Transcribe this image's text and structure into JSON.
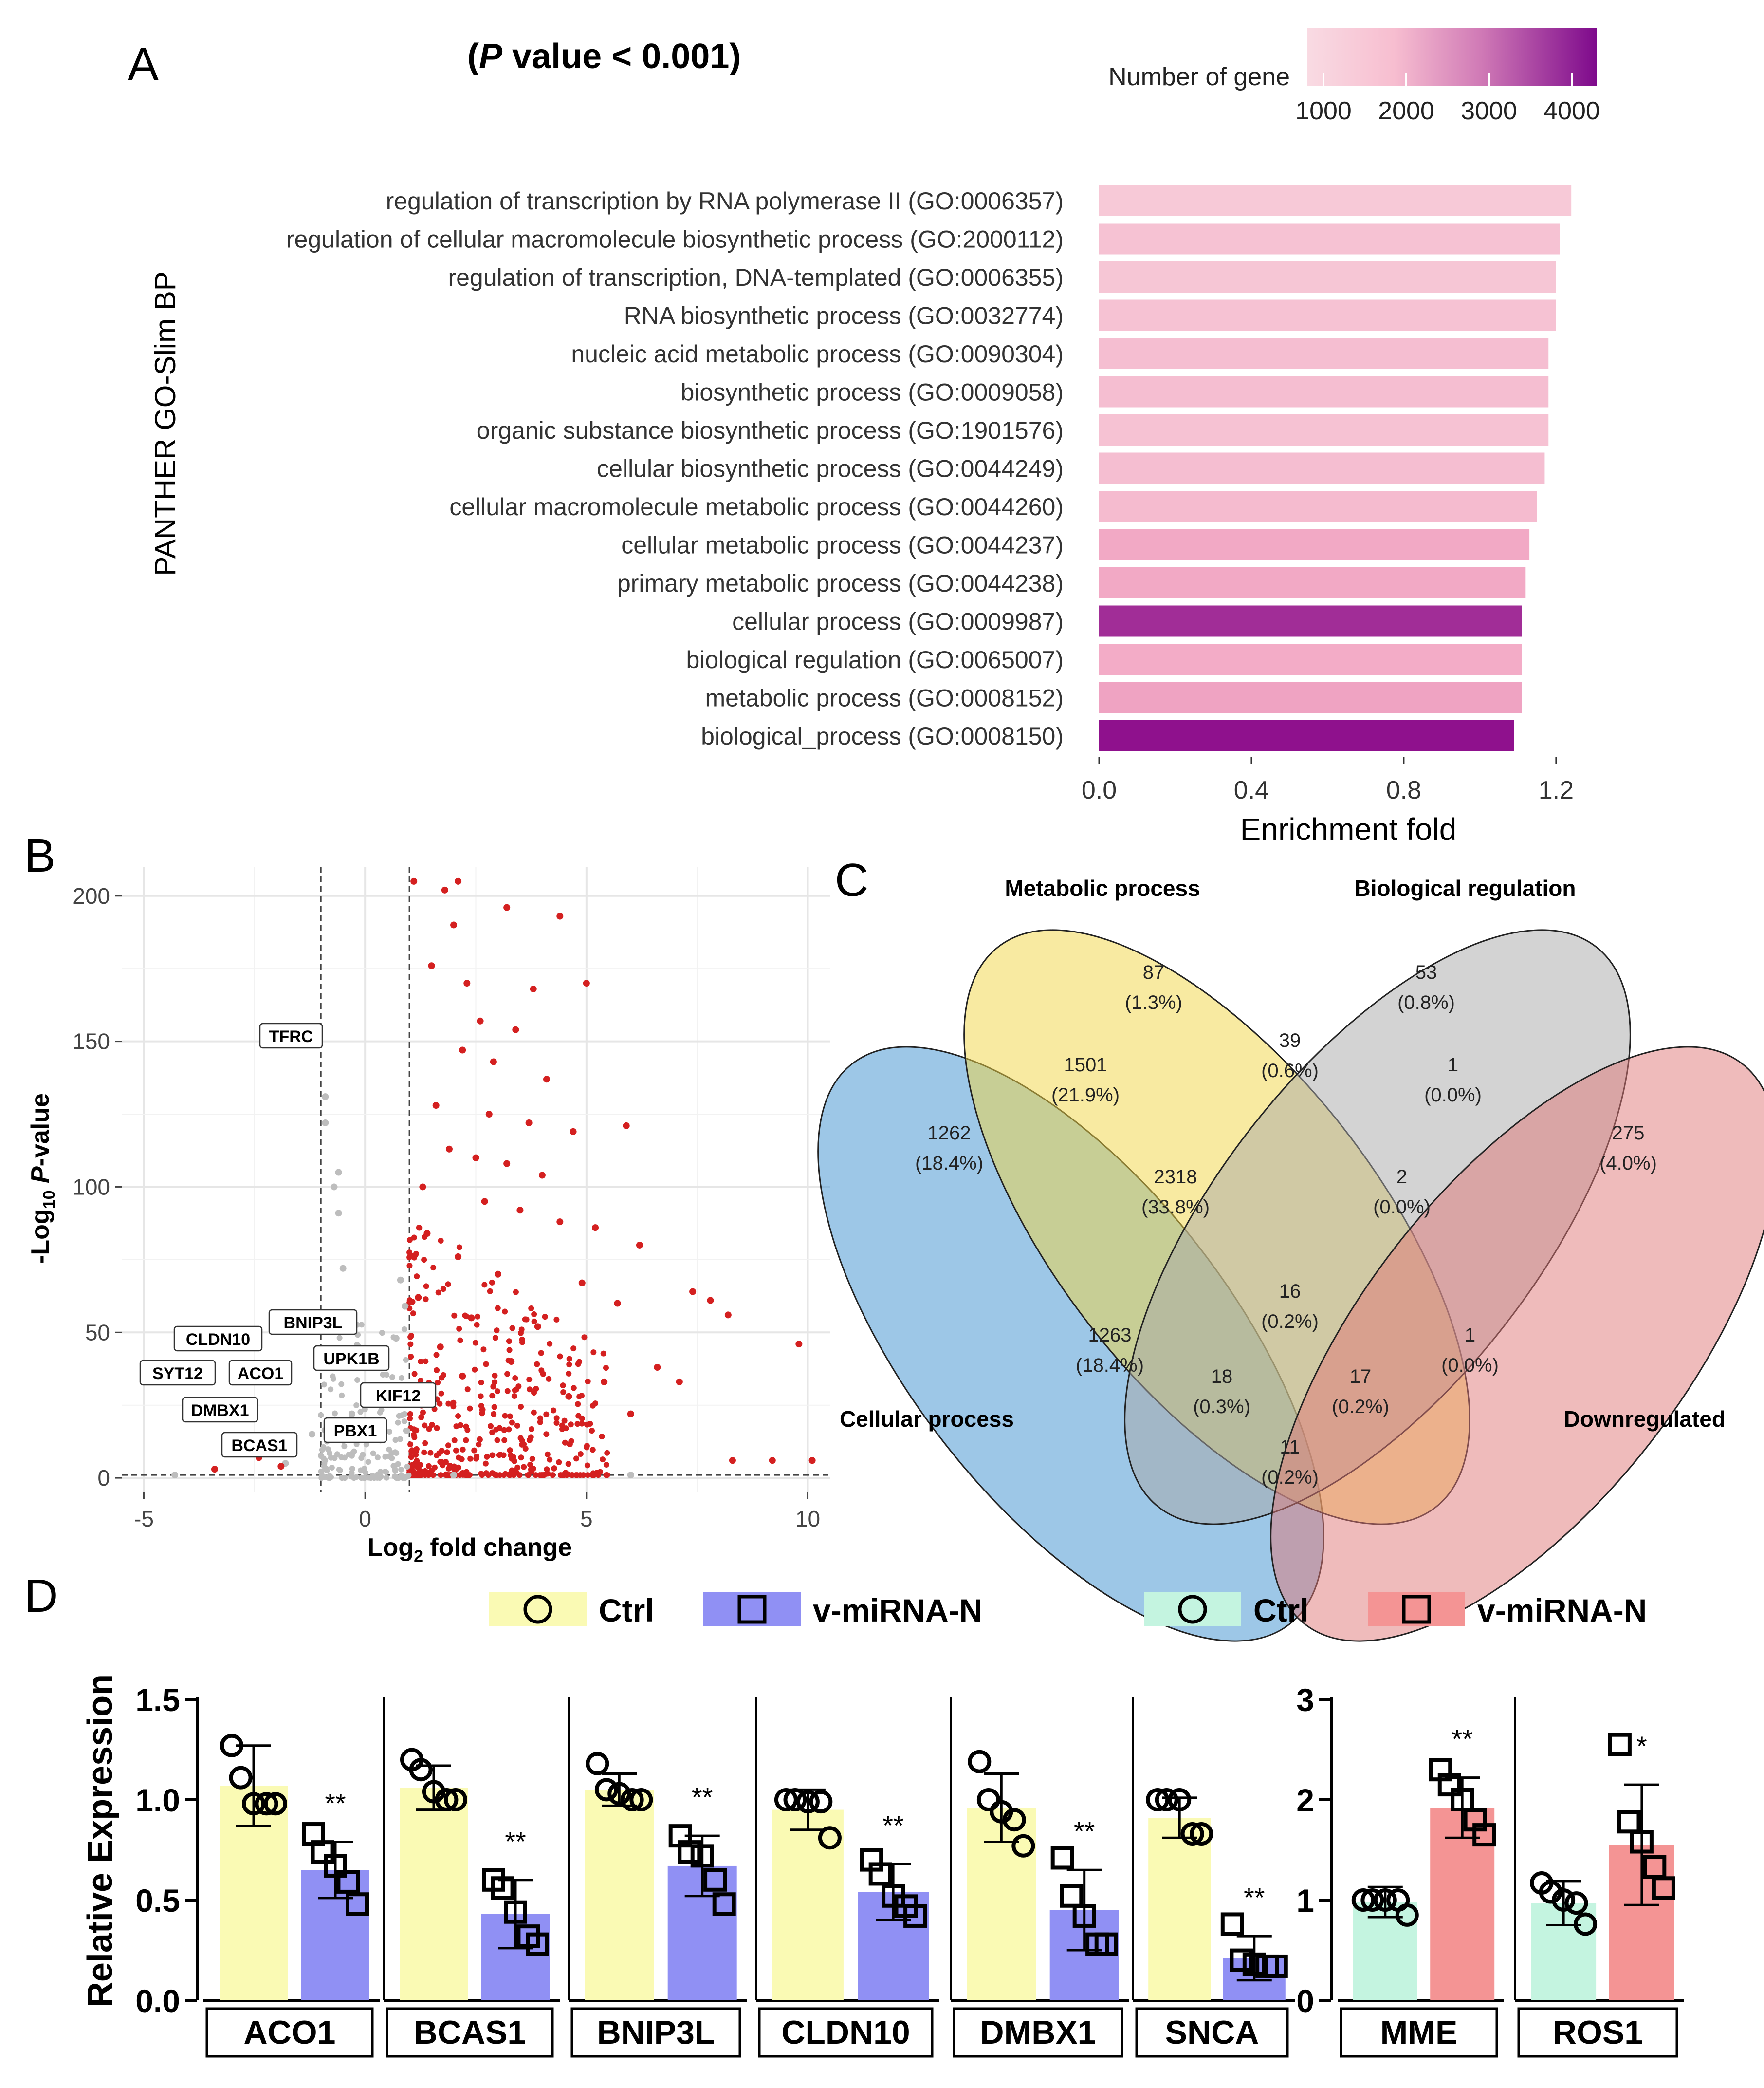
{
  "panelA": {
    "label": "A",
    "pvalue_text": "(P value < 0.001)",
    "pvalue_p": "P",
    "pvalue_rest": " value < 0.001)",
    "pvalue_open": "(",
    "ylabel": "PANTHER GO-Slim BP",
    "xlabel": "Enrichment fold",
    "legend_title": "Number of gene",
    "legend_ticks": [
      "1000",
      "2000",
      "3000",
      "4000"
    ],
    "colors": {
      "low": "#f8d4dd",
      "mid": "#f2a8c4",
      "high": "#8a0a8a"
    }
  },
  "panelB": {
    "label": "B",
    "ylabel_prefix": "-Log",
    "ylabel_sub": "10",
    "ylabel_italic": "P",
    "ylabel_suffix": "-value",
    "xlabel_prefix": "Log",
    "xlabel_sub": "2",
    "xlabel_suffix": " fold change",
    "colors": {
      "sig": "#d42020",
      "ns": "#bdbdbd"
    }
  },
  "panelC": {
    "label": "C",
    "sets": [
      "Metabolic process",
      "Biological regulation",
      "Cellular process",
      "Downregulated"
    ],
    "regions": [
      {
        "n": "87",
        "pct": "(1.3%)"
      },
      {
        "n": "53",
        "pct": "(0.8%)"
      },
      {
        "n": "39",
        "pct": "(0.6%)"
      },
      {
        "n": "1501",
        "pct": "(21.9%)"
      },
      {
        "n": "1",
        "pct": "(0.0%)"
      },
      {
        "n": "1262",
        "pct": "(18.4%)"
      },
      {
        "n": "275",
        "pct": "(4.0%)"
      },
      {
        "n": "2318",
        "pct": "(33.8%)"
      },
      {
        "n": "2",
        "pct": "(0.0%)"
      },
      {
        "n": "16",
        "pct": "(0.2%)"
      },
      {
        "n": "1263",
        "pct": "(18.4%)"
      },
      {
        "n": "1",
        "pct": "(0.0%)"
      },
      {
        "n": "18",
        "pct": "(0.3%)"
      },
      {
        "n": "17",
        "pct": "(0.2%)"
      },
      {
        "n": "11",
        "pct": "(0.2%)"
      }
    ],
    "colors": {
      "metabolic": "#f2d544",
      "regulation": "#a8a8a8",
      "cellular": "#3b8fd0",
      "down": "#e07878"
    }
  },
  "panelD": {
    "label": "D",
    "ylabel": "Relative Expression",
    "legend_left": {
      "ctrl": "Ctrl",
      "treat": "v-miRNA-N",
      "ctrl_color": "#fafab4",
      "treat_color": "#9090f4"
    },
    "legend_right": {
      "ctrl": "Ctrl",
      "treat": "v-miRNA-N",
      "ctrl_color": "#c4f4e0",
      "treat_color": "#f49494"
    },
    "left_ticks": [
      "0.0",
      "0.5",
      "1.0",
      "1.5"
    ],
    "right_ticks": [
      "0",
      "1",
      "2",
      "3"
    ]
  },
  "chart_data": [
    {
      "type": "bar",
      "orientation": "horizontal",
      "title": "(P value < 0.001)",
      "xlabel": "Enrichment fold",
      "ylabel": "PANTHER GO-Slim BP",
      "xlim": [
        0,
        1.25
      ],
      "xticks": [
        "0.0",
        "0.4",
        "0.8",
        "1.2"
      ],
      "color_scale": {
        "label": "Number of gene",
        "range": [
          800,
          4300
        ]
      },
      "categories": [
        "regulation of transcription by RNA polymerase II (GO:0006357)",
        "regulation of cellular macromolecule biosynthetic process (GO:2000112)",
        "regulation of transcription, DNA-templated (GO:0006355)",
        "RNA biosynthetic process (GO:0032774)",
        "nucleic acid metabolic process (GO:0090304)",
        "biosynthetic process (GO:0009058)",
        "organic substance biosynthetic process (GO:1901576)",
        "cellular biosynthetic process (GO:0044249)",
        "cellular macromolecule metabolic process (GO:0044260)",
        "cellular metabolic process (GO:0044237)",
        "primary metabolic process (GO:0044238)",
        "cellular process (GO:0009987)",
        "biological regulation (GO:0065007)",
        "metabolic process (GO:0008152)",
        "biological_process (GO:0008150)"
      ],
      "values": [
        1.24,
        1.21,
        1.2,
        1.2,
        1.18,
        1.18,
        1.18,
        1.17,
        1.15,
        1.13,
        1.12,
        1.11,
        1.11,
        1.11,
        1.09
      ],
      "gene_counts": [
        1100,
        1300,
        1200,
        1300,
        1400,
        1400,
        1300,
        1400,
        1500,
        2000,
        2000,
        3800,
        1900,
        2100,
        4200
      ]
    },
    {
      "type": "scatter",
      "title": "",
      "xlabel": "Log2 fold change",
      "ylabel": "-Log10 P-value",
      "xlim": [
        -5.5,
        10.5
      ],
      "ylim": [
        -5,
        210
      ],
      "xticks": [
        "-5",
        "0",
        "5",
        "10"
      ],
      "yticks": [
        "0",
        "50",
        "100",
        "150",
        "200"
      ],
      "thresholds": {
        "log2fc": [
          -1,
          1
        ],
        "pvalue_log": 1
      },
      "labeled_genes": [
        "TFRC",
        "BNIP3L",
        "CLDN10",
        "UPK1B",
        "SYT12",
        "ACO1",
        "KIF12",
        "DMBX1",
        "PBX1",
        "BCAS1"
      ],
      "series": [
        {
          "name": "significant",
          "points": [
            [
              1.1,
              205
            ],
            [
              1.8,
              202
            ],
            [
              2.1,
              205
            ],
            [
              3.2,
              196
            ],
            [
              4.4,
              193
            ],
            [
              2.0,
              190
            ],
            [
              1.5,
              176
            ],
            [
              2.3,
              170
            ],
            [
              3.8,
              168
            ],
            [
              5.0,
              170
            ],
            [
              2.6,
              157
            ],
            [
              3.4,
              154
            ],
            [
              2.2,
              147
            ],
            [
              2.9,
              143
            ],
            [
              4.1,
              137
            ],
            [
              1.6,
              128
            ],
            [
              2.8,
              125
            ],
            [
              3.7,
              122
            ],
            [
              4.7,
              119
            ],
            [
              5.9,
              121
            ],
            [
              1.9,
              113
            ],
            [
              2.5,
              110
            ],
            [
              3.2,
              108
            ],
            [
              4.0,
              104
            ],
            [
              1.3,
              100
            ],
            [
              2.7,
              95
            ],
            [
              3.5,
              92
            ],
            [
              4.4,
              88
            ],
            [
              5.2,
              86
            ],
            [
              6.2,
              80
            ],
            [
              7.4,
              64
            ],
            [
              7.8,
              61
            ],
            [
              8.2,
              56
            ],
            [
              1.4,
              84
            ],
            [
              2.1,
              76
            ],
            [
              3.0,
              70
            ],
            [
              4.9,
              67
            ],
            [
              5.7,
              60
            ],
            [
              1.2,
              62
            ],
            [
              2.4,
              55
            ],
            [
              3.9,
              52
            ],
            [
              9.8,
              46
            ],
            [
              6.6,
              38
            ],
            [
              7.1,
              33
            ],
            [
              5.4,
              33
            ],
            [
              4.6,
              28
            ],
            [
              6.0,
              22
            ],
            [
              3.3,
              40
            ],
            [
              1.7,
              45
            ],
            [
              2.2,
              35
            ],
            [
              8.3,
              6
            ],
            [
              9.2,
              6
            ],
            [
              10.1,
              6
            ],
            [
              -2.4,
              7
            ],
            [
              -3.4,
              3
            ],
            [
              -1.9,
              4
            ]
          ]
        },
        {
          "name": "not_significant",
          "points": [
            [
              -0.9,
              131
            ],
            [
              -0.9,
              122
            ],
            [
              -0.6,
              105
            ],
            [
              -0.7,
              100
            ],
            [
              -0.6,
              91
            ],
            [
              -0.5,
              72
            ],
            [
              -0.8,
              55
            ],
            [
              0.8,
              68
            ],
            [
              0.9,
              59
            ],
            [
              0.7,
              48
            ],
            [
              -0.3,
              22
            ],
            [
              0.1,
              28
            ],
            [
              0.4,
              30
            ],
            [
              -1.2,
              15
            ],
            [
              -1.8,
              5
            ],
            [
              -4.3,
              1
            ],
            [
              2.0,
              1
            ],
            [
              6.0,
              1
            ]
          ]
        }
      ]
    },
    {
      "type": "table",
      "title": "Venn diagram",
      "sets": [
        "Metabolic process",
        "Biological regulation",
        "Cellular process",
        "Downregulated"
      ],
      "regions": [
        {
          "sets": [
            "Metabolic process"
          ],
          "count": 87,
          "percent": 1.3
        },
        {
          "sets": [
            "Biological regulation"
          ],
          "count": 53,
          "percent": 0.8
        },
        {
          "sets": [
            "Metabolic process",
            "Biological regulation"
          ],
          "count": 39,
          "percent": 0.6
        },
        {
          "sets": [
            "Cellular process",
            "Metabolic process"
          ],
          "count": 1501,
          "percent": 21.9
        },
        {
          "sets": [
            "Biological regulation",
            "Downregulated"
          ],
          "count": 1,
          "percent": 0.0
        },
        {
          "sets": [
            "Cellular process"
          ],
          "count": 1262,
          "percent": 18.4
        },
        {
          "sets": [
            "Downregulated"
          ],
          "count": 275,
          "percent": 4.0
        },
        {
          "sets": [
            "Cellular process",
            "Metabolic process",
            "Biological regulation"
          ],
          "count": 2318,
          "percent": 33.8
        },
        {
          "sets": [
            "Metabolic process",
            "Biological regulation",
            "Downregulated"
          ],
          "count": 2,
          "percent": 0.0
        },
        {
          "sets": [
            "Cellular process",
            "Metabolic process",
            "Biological regulation",
            "Downregulated"
          ],
          "count": 16,
          "percent": 0.2
        },
        {
          "sets": [
            "Cellular process",
            "Biological regulation"
          ],
          "count": 1263,
          "percent": 18.4
        },
        {
          "sets": [
            "Metabolic process",
            "Downregulated"
          ],
          "count": 1,
          "percent": 0.0
        },
        {
          "sets": [
            "Cellular process",
            "Biological regulation",
            "Downregulated"
          ],
          "count": 18,
          "percent": 0.3
        },
        {
          "sets": [
            "Cellular process",
            "Metabolic process",
            "Downregulated"
          ],
          "count": 17,
          "percent": 0.2
        },
        {
          "sets": [
            "Cellular process",
            "Downregulated"
          ],
          "count": 11,
          "percent": 0.2
        }
      ]
    },
    {
      "type": "bar",
      "title": "",
      "xlabel": "",
      "ylabel": "Relative Expression",
      "groups": [
        {
          "gene": "ACO1",
          "axis": "left",
          "ctrl": {
            "mean": 1.07,
            "sd": 0.2,
            "points": [
              1.27,
              1.11,
              0.98,
              0.98,
              0.98
            ]
          },
          "treat": {
            "mean": 0.65,
            "sd": 0.14,
            "points": [
              0.83,
              0.74,
              0.67,
              0.59,
              0.48
            ]
          },
          "sig": "**"
        },
        {
          "gene": "BCAS1",
          "axis": "left",
          "ctrl": {
            "mean": 1.06,
            "sd": 0.11,
            "points": [
              1.2,
              1.15,
              1.04,
              1.0,
              1.0
            ]
          },
          "treat": {
            "mean": 0.43,
            "sd": 0.17,
            "points": [
              0.6,
              0.56,
              0.44,
              0.32,
              0.28
            ]
          },
          "sig": "**"
        },
        {
          "gene": "BNIP3L",
          "axis": "left",
          "ctrl": {
            "mean": 1.05,
            "sd": 0.08,
            "points": [
              1.18,
              1.05,
              1.03,
              1.0,
              1.0
            ]
          },
          "treat": {
            "mean": 0.67,
            "sd": 0.15,
            "points": [
              0.82,
              0.74,
              0.72,
              0.6,
              0.48
            ]
          },
          "sig": "**"
        },
        {
          "gene": "CLDN10",
          "axis": "left",
          "ctrl": {
            "mean": 0.95,
            "sd": 0.1,
            "points": [
              1.0,
              1.0,
              0.99,
              0.99,
              0.81
            ]
          },
          "treat": {
            "mean": 0.54,
            "sd": 0.14,
            "points": [
              0.7,
              0.63,
              0.52,
              0.47,
              0.42
            ]
          },
          "sig": "**"
        },
        {
          "gene": "DMBX1",
          "axis": "left",
          "ctrl": {
            "mean": 0.96,
            "sd": 0.17,
            "points": [
              1.19,
              1.0,
              0.94,
              0.9,
              0.77
            ]
          },
          "treat": {
            "mean": 0.45,
            "sd": 0.2,
            "points": [
              0.71,
              0.52,
              0.42,
              0.28,
              0.28
            ]
          },
          "sig": "**"
        },
        {
          "gene": "SNCA",
          "axis": "left",
          "ctrl": {
            "mean": 0.91,
            "sd": 0.1,
            "points": [
              1.0,
              1.0,
              1.0,
              0.83,
              0.83
            ]
          },
          "treat": {
            "mean": 0.21,
            "sd": 0.11,
            "points": [
              0.38,
              0.2,
              0.18,
              0.17,
              0.17
            ]
          },
          "sig": "**"
        },
        {
          "gene": "MME",
          "axis": "right",
          "ctrl": {
            "mean": 0.98,
            "sd": 0.15,
            "points": [
              1.0,
              1.0,
              1.0,
              1.0,
              0.85
            ]
          },
          "treat": {
            "mean": 1.92,
            "sd": 0.3,
            "points": [
              2.3,
              2.15,
              2.0,
              1.8,
              1.65
            ]
          },
          "sig": "**"
        },
        {
          "gene": "ROS1",
          "axis": "right",
          "ctrl": {
            "mean": 0.97,
            "sd": 0.22,
            "points": [
              1.17,
              1.08,
              1.0,
              0.97,
              0.76
            ]
          },
          "treat": {
            "mean": 1.55,
            "sd": 0.6,
            "points": [
              2.55,
              1.78,
              1.58,
              1.33,
              1.12
            ]
          },
          "sig": "*"
        }
      ],
      "left_ylim": [
        0,
        1.5
      ],
      "right_ylim": [
        0,
        3
      ]
    }
  ]
}
